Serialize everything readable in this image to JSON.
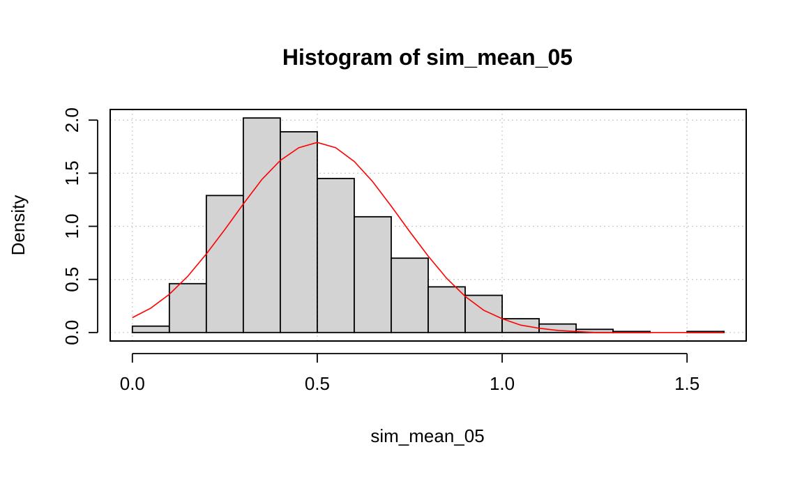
{
  "chart_data": {
    "type": "bar",
    "title": "Histogram of sim_mean_05",
    "xlabel": "sim_mean_05",
    "ylabel": "Density",
    "xlim": [
      -0.06,
      1.66
    ],
    "ylim": [
      -0.08,
      2.1
    ],
    "grid": true,
    "bins": [
      {
        "x0": 0.0,
        "x1": 0.1,
        "density": 0.06
      },
      {
        "x0": 0.1,
        "x1": 0.2,
        "density": 0.46
      },
      {
        "x0": 0.2,
        "x1": 0.3,
        "density": 1.29
      },
      {
        "x0": 0.3,
        "x1": 0.4,
        "density": 2.02
      },
      {
        "x0": 0.4,
        "x1": 0.5,
        "density": 1.89
      },
      {
        "x0": 0.5,
        "x1": 0.6,
        "density": 1.45
      },
      {
        "x0": 0.6,
        "x1": 0.7,
        "density": 1.09
      },
      {
        "x0": 0.7,
        "x1": 0.8,
        "density": 0.7
      },
      {
        "x0": 0.8,
        "x1": 0.9,
        "density": 0.43
      },
      {
        "x0": 0.9,
        "x1": 1.0,
        "density": 0.35
      },
      {
        "x0": 1.0,
        "x1": 1.1,
        "density": 0.13
      },
      {
        "x0": 1.1,
        "x1": 1.2,
        "density": 0.08
      },
      {
        "x0": 1.2,
        "x1": 1.3,
        "density": 0.03
      },
      {
        "x0": 1.3,
        "x1": 1.4,
        "density": 0.01
      },
      {
        "x0": 1.4,
        "x1": 1.5,
        "density": 0.0
      },
      {
        "x0": 1.5,
        "x1": 1.6,
        "density": 0.01
      }
    ],
    "series": [
      {
        "type": "line",
        "color": "#ff0000",
        "x": [
          0.0,
          0.05,
          0.1,
          0.15,
          0.2,
          0.25,
          0.3,
          0.35,
          0.4,
          0.45,
          0.5,
          0.55,
          0.6,
          0.65,
          0.7,
          0.75,
          0.8,
          0.85,
          0.9,
          0.95,
          1.0,
          1.05,
          1.1,
          1.15,
          1.2,
          1.25,
          1.3,
          1.4,
          1.5,
          1.6
        ],
        "y": [
          0.14,
          0.23,
          0.36,
          0.53,
          0.74,
          0.97,
          1.21,
          1.44,
          1.62,
          1.74,
          1.79,
          1.74,
          1.61,
          1.42,
          1.19,
          0.95,
          0.72,
          0.51,
          0.34,
          0.21,
          0.13,
          0.07,
          0.04,
          0.02,
          0.01,
          0.0,
          0.0,
          0.0,
          0.0,
          0.0
        ]
      }
    ],
    "reference_lines": [
      {
        "type": "vertical",
        "x": 0.5,
        "y_to": 1.89,
        "style": "dashed"
      },
      {
        "type": "vertical",
        "x": 1.0,
        "y_to": 0.35,
        "style": "dashed"
      },
      {
        "type": "horizontal",
        "y": 0.0,
        "x_from": 0.0,
        "x_to": 1.0,
        "style": "dashed"
      }
    ],
    "xticks": [
      0.0,
      0.5,
      1.0,
      1.5
    ],
    "xtick_labels": [
      "0.0",
      "0.5",
      "1.0",
      "1.5"
    ],
    "yticks": [
      0.0,
      0.5,
      1.0,
      1.5,
      2.0
    ],
    "ytick_labels": [
      "0.0",
      "0.5",
      "1.0",
      "1.5",
      "2.0"
    ],
    "colors": {
      "bar_fill": "#d3d3d3",
      "bar_stroke": "#000000",
      "curve": "#ff0000",
      "grid": "#c8c8c8"
    }
  }
}
